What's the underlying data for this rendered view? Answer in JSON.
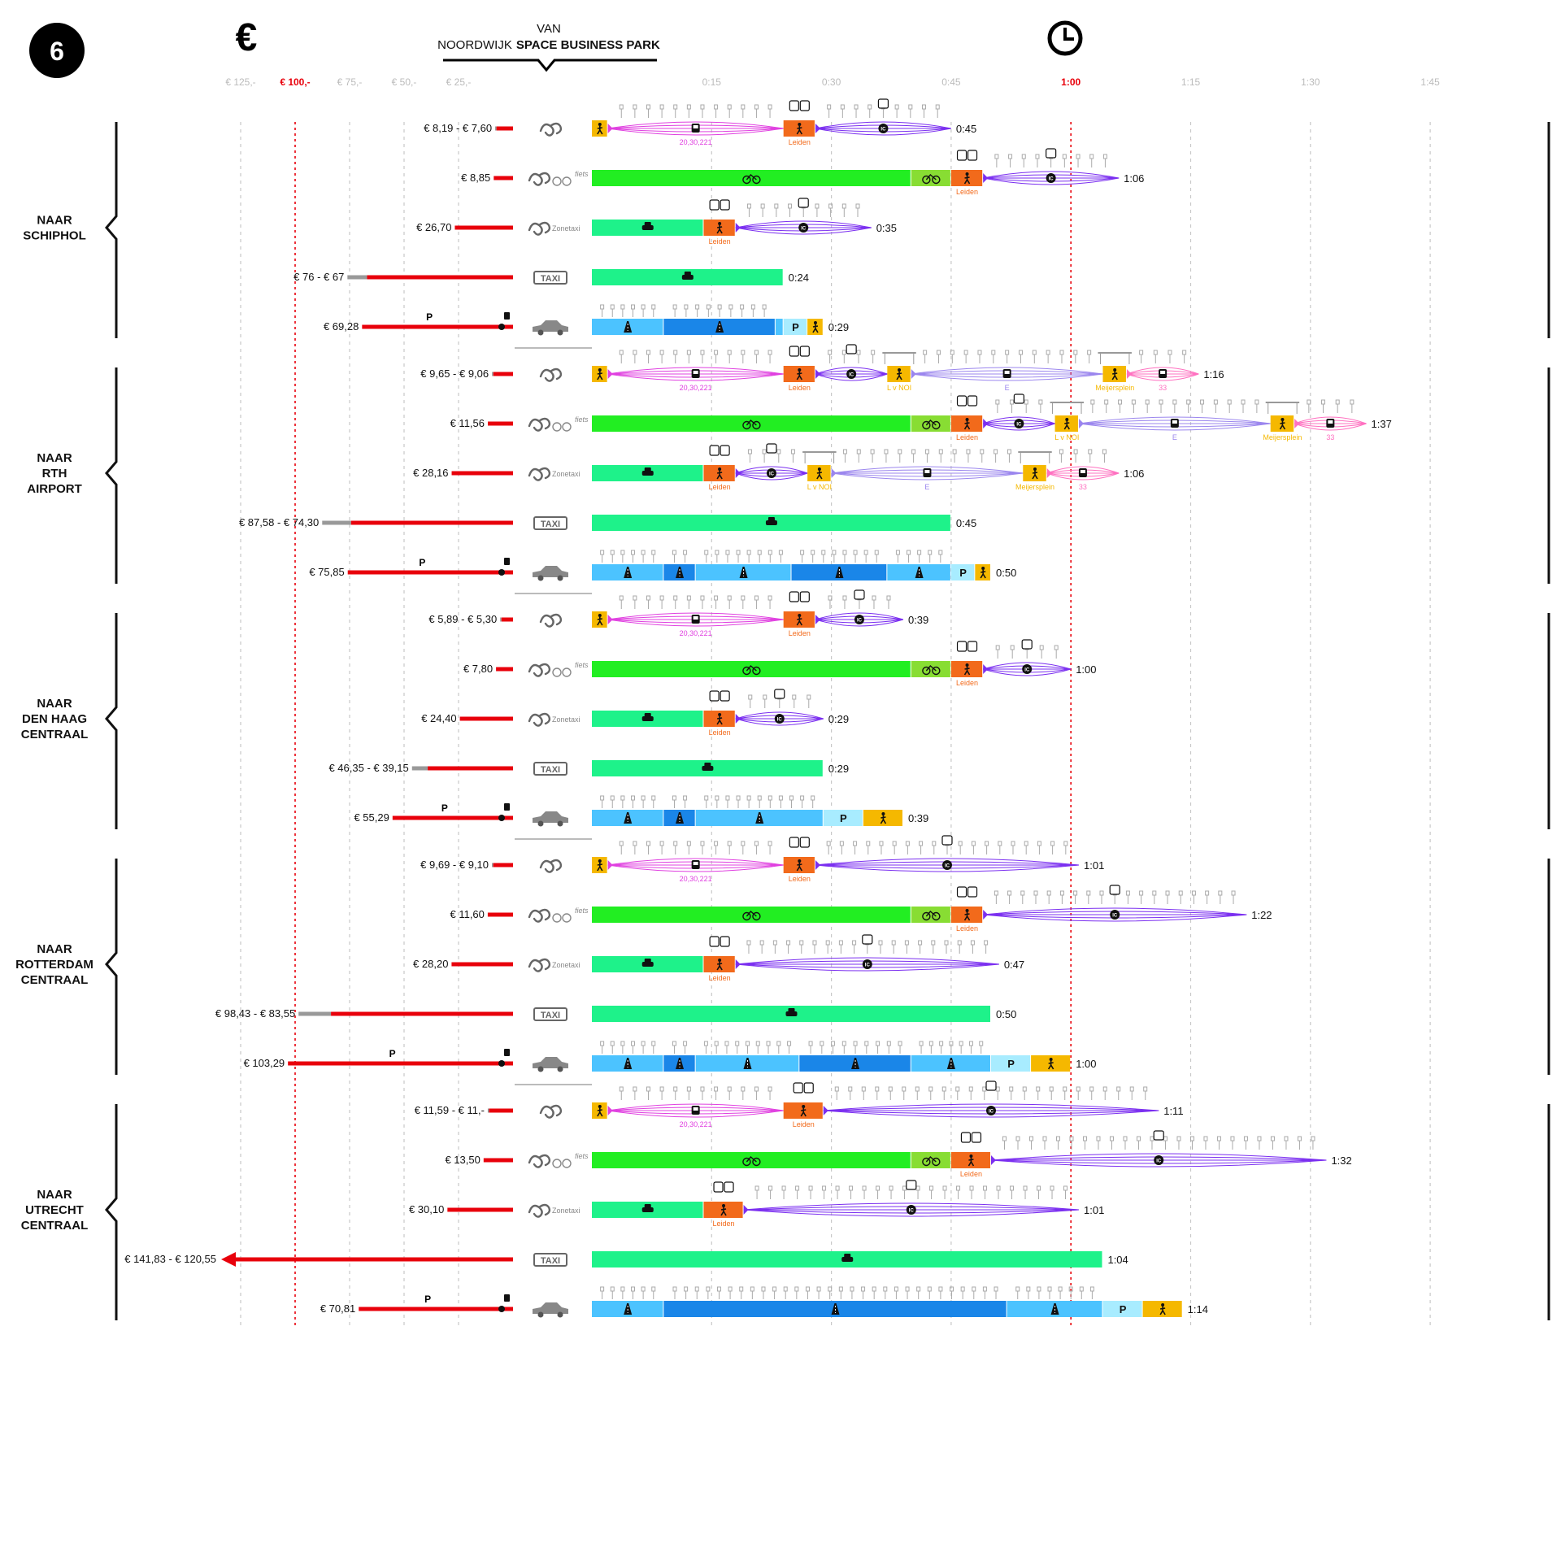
{
  "figure_number": "6",
  "header": {
    "van": "VAN",
    "origin_prefix": "NOORDWIJK",
    "origin_bold": "SPACE BUSINESS PARK",
    "euro_symbol": "€"
  },
  "price_ticks": [
    "€ 125,-",
    "€ 100,-",
    "€ 75,-",
    "€ 50,-",
    "€ 25,-"
  ],
  "time_ticks": [
    "0:15",
    "0:30",
    "0:45",
    "1:00",
    "1:15",
    "1:30",
    "1:45"
  ],
  "colors": {
    "walk": "#f5b800",
    "bike": "#22ee22",
    "bike_park": "#88dd33",
    "transfer": "#f26a1b",
    "bus": "#e040e0",
    "train": "#7b2ff0",
    "tram": "#9b86ee",
    "bus33": "#ff70c0",
    "taxi": "#1ef28a",
    "road_light": "#4cc3ff",
    "road_dark": "#1a86e8",
    "parking": "#a8ecff",
    "price_red": "#e8000b",
    "price_gray": "#999999",
    "stop": "#aaaaaa"
  },
  "groups": [
    {
      "title": [
        "NAAR",
        "SCHIPHOL"
      ],
      "rows": [
        {
          "mode": "ov",
          "price": "€ 8,19 - € 7,60",
          "min": 7.6,
          "max": 8.19,
          "total": "0:45",
          "segments": [
            {
              "type": "walk",
              "from": 0,
              "to": 2
            },
            {
              "type": "bus",
              "from": 2,
              "to": 24,
              "line": "20,30,221"
            },
            {
              "type": "transfer",
              "from": 24,
              "to": 28,
              "station": "Leiden"
            },
            {
              "type": "train",
              "from": 28,
              "to": 45
            }
          ]
        },
        {
          "mode": "fiets",
          "price": "€ 8,85",
          "min": 8.85,
          "max": 8.85,
          "total": "1:06",
          "segments": [
            {
              "type": "bike",
              "from": 0,
              "to": 40
            },
            {
              "type": "bike_park",
              "from": 40,
              "to": 45
            },
            {
              "type": "transfer",
              "from": 45,
              "to": 49,
              "station": "Leiden"
            },
            {
              "type": "train",
              "from": 49,
              "to": 66
            }
          ]
        },
        {
          "mode": "zonetaxi",
          "price": "€ 26,70",
          "min": 26.7,
          "max": 26.7,
          "total": "0:35",
          "segments": [
            {
              "type": "taxi",
              "from": 0,
              "to": 14
            },
            {
              "type": "transfer",
              "from": 14,
              "to": 18,
              "station": "Leiden"
            },
            {
              "type": "train",
              "from": 18,
              "to": 35
            }
          ]
        },
        {
          "mode": "taxi",
          "price": "€ 76 - € 67",
          "min": 67,
          "max": 76,
          "total": "0:24",
          "segments": [
            {
              "type": "taxi",
              "from": 0,
              "to": 24
            }
          ]
        },
        {
          "mode": "auto",
          "price": "€ 69,28",
          "min": 69.28,
          "max": 69.28,
          "total": "0:29",
          "segments": [
            {
              "type": "road_light",
              "from": 0,
              "to": 9
            },
            {
              "type": "road_dark",
              "from": 9,
              "to": 23
            },
            {
              "type": "road_light",
              "from": 23,
              "to": 24
            },
            {
              "type": "parking",
              "from": 24,
              "to": 27
            },
            {
              "type": "walk",
              "from": 27,
              "to": 29
            }
          ]
        }
      ]
    },
    {
      "title": [
        "NAAR",
        "RTH",
        "AIRPORT"
      ],
      "rows": [
        {
          "mode": "ov",
          "price": "€ 9,65 - € 9,06",
          "min": 9.06,
          "max": 9.65,
          "total": "1:16",
          "segments": [
            {
              "type": "walk",
              "from": 0,
              "to": 2
            },
            {
              "type": "bus",
              "from": 2,
              "to": 24,
              "line": "20,30,221"
            },
            {
              "type": "transfer",
              "from": 24,
              "to": 28,
              "station": "Leiden"
            },
            {
              "type": "train",
              "from": 28,
              "to": 37
            },
            {
              "type": "walk",
              "from": 37,
              "to": 40,
              "station": "L v NOI"
            },
            {
              "type": "tram",
              "from": 40,
              "to": 64,
              "line": "E"
            },
            {
              "type": "walk",
              "from": 64,
              "to": 67,
              "station": "Meijersplein"
            },
            {
              "type": "bus33",
              "from": 67,
              "to": 76,
              "line": "33"
            }
          ]
        },
        {
          "mode": "fiets",
          "price": "€ 11,56",
          "min": 11.56,
          "max": 11.56,
          "total": "1:37",
          "segments": [
            {
              "type": "bike",
              "from": 0,
              "to": 40
            },
            {
              "type": "bike_park",
              "from": 40,
              "to": 45
            },
            {
              "type": "transfer",
              "from": 45,
              "to": 49,
              "station": "Leiden"
            },
            {
              "type": "train",
              "from": 49,
              "to": 58
            },
            {
              "type": "walk",
              "from": 58,
              "to": 61,
              "station": "L v NOI"
            },
            {
              "type": "tram",
              "from": 61,
              "to": 85,
              "line": "E"
            },
            {
              "type": "walk",
              "from": 85,
              "to": 88,
              "station": "Meijersplein"
            },
            {
              "type": "bus33",
              "from": 88,
              "to": 97,
              "line": "33"
            }
          ]
        },
        {
          "mode": "zonetaxi",
          "price": "€ 28,16",
          "min": 28.16,
          "max": 28.16,
          "total": "1:06",
          "segments": [
            {
              "type": "taxi",
              "from": 0,
              "to": 14
            },
            {
              "type": "transfer",
              "from": 14,
              "to": 18,
              "station": "Leiden"
            },
            {
              "type": "train",
              "from": 18,
              "to": 27
            },
            {
              "type": "walk",
              "from": 27,
              "to": 30,
              "station": "L v NOI"
            },
            {
              "type": "tram",
              "from": 30,
              "to": 54,
              "line": "E"
            },
            {
              "type": "walk",
              "from": 54,
              "to": 57,
              "station": "Meijersplein"
            },
            {
              "type": "bus33",
              "from": 57,
              "to": 66,
              "line": "33"
            }
          ]
        },
        {
          "mode": "taxi",
          "price": "€ 87,58 - € 74,30",
          "min": 74.3,
          "max": 87.58,
          "total": "0:45",
          "segments": [
            {
              "type": "taxi",
              "from": 0,
              "to": 45
            }
          ]
        },
        {
          "mode": "auto",
          "price": "€ 75,85",
          "min": 75.85,
          "max": 75.85,
          "total": "0:50",
          "segments": [
            {
              "type": "road_light",
              "from": 0,
              "to": 9
            },
            {
              "type": "road_dark",
              "from": 9,
              "to": 13
            },
            {
              "type": "road_light",
              "from": 13,
              "to": 25
            },
            {
              "type": "road_dark",
              "from": 25,
              "to": 37
            },
            {
              "type": "road_light",
              "from": 37,
              "to": 45
            },
            {
              "type": "parking",
              "from": 45,
              "to": 48
            },
            {
              "type": "walk",
              "from": 48,
              "to": 50
            }
          ]
        }
      ]
    },
    {
      "title": [
        "NAAR",
        "DEN HAAG",
        "CENTRAAL"
      ],
      "rows": [
        {
          "mode": "ov",
          "price": "€ 5,89 - € 5,30",
          "min": 5.3,
          "max": 5.89,
          "total": "0:39",
          "segments": [
            {
              "type": "walk",
              "from": 0,
              "to": 2
            },
            {
              "type": "bus",
              "from": 2,
              "to": 24,
              "line": "20,30,221"
            },
            {
              "type": "transfer",
              "from": 24,
              "to": 28,
              "station": "Leiden"
            },
            {
              "type": "train",
              "from": 28,
              "to": 39
            }
          ]
        },
        {
          "mode": "fiets",
          "price": "€ 7,80",
          "min": 7.8,
          "max": 7.8,
          "total": "1:00",
          "segments": [
            {
              "type": "bike",
              "from": 0,
              "to": 40
            },
            {
              "type": "bike_park",
              "from": 40,
              "to": 45
            },
            {
              "type": "transfer",
              "from": 45,
              "to": 49,
              "station": "Leiden"
            },
            {
              "type": "train",
              "from": 49,
              "to": 60
            }
          ]
        },
        {
          "mode": "zonetaxi",
          "price": "€ 24,40",
          "min": 24.4,
          "max": 24.4,
          "total": "0:29",
          "segments": [
            {
              "type": "taxi",
              "from": 0,
              "to": 14
            },
            {
              "type": "transfer",
              "from": 14,
              "to": 18,
              "station": "Leiden"
            },
            {
              "type": "train",
              "from": 18,
              "to": 29
            }
          ]
        },
        {
          "mode": "taxi",
          "price": "€ 46,35 - € 39,15",
          "min": 39.15,
          "max": 46.35,
          "total": "0:29",
          "segments": [
            {
              "type": "taxi",
              "from": 0,
              "to": 29
            }
          ]
        },
        {
          "mode": "auto",
          "price": "€ 55,29",
          "min": 55.29,
          "max": 55.29,
          "total": "0:39",
          "segments": [
            {
              "type": "road_light",
              "from": 0,
              "to": 9
            },
            {
              "type": "road_dark",
              "from": 9,
              "to": 13
            },
            {
              "type": "road_light",
              "from": 13,
              "to": 29
            },
            {
              "type": "parking",
              "from": 29,
              "to": 34
            },
            {
              "type": "walk",
              "from": 34,
              "to": 39
            }
          ]
        }
      ]
    },
    {
      "title": [
        "NAAR",
        "ROTTERDAM",
        "CENTRAAL"
      ],
      "rows": [
        {
          "mode": "ov",
          "price": "€ 9,69 - € 9,10",
          "min": 9.1,
          "max": 9.69,
          "total": "1:01",
          "segments": [
            {
              "type": "walk",
              "from": 0,
              "to": 2
            },
            {
              "type": "bus",
              "from": 2,
              "to": 24,
              "line": "20,30,221"
            },
            {
              "type": "transfer",
              "from": 24,
              "to": 28,
              "station": "Leiden"
            },
            {
              "type": "train",
              "from": 28,
              "to": 61
            }
          ]
        },
        {
          "mode": "fiets",
          "price": "€ 11,60",
          "min": 11.6,
          "max": 11.6,
          "total": "1:22",
          "segments": [
            {
              "type": "bike",
              "from": 0,
              "to": 40
            },
            {
              "type": "bike_park",
              "from": 40,
              "to": 45
            },
            {
              "type": "transfer",
              "from": 45,
              "to": 49,
              "station": "Leiden"
            },
            {
              "type": "train",
              "from": 49,
              "to": 82
            }
          ]
        },
        {
          "mode": "zonetaxi",
          "price": "€ 28,20",
          "min": 28.2,
          "max": 28.2,
          "total": "0:47",
          "segments": [
            {
              "type": "taxi",
              "from": 0,
              "to": 14
            },
            {
              "type": "transfer",
              "from": 14,
              "to": 18,
              "station": "Leiden"
            },
            {
              "type": "train",
              "from": 18,
              "to": 51
            }
          ]
        },
        {
          "mode": "taxi",
          "price": "€ 98,43 - € 83,55",
          "min": 83.55,
          "max": 98.43,
          "total": "0:50",
          "segments": [
            {
              "type": "taxi",
              "from": 0,
              "to": 50
            }
          ]
        },
        {
          "mode": "auto",
          "price": "€ 103,29",
          "min": 103.29,
          "max": 103.29,
          "total": "1:00",
          "segments": [
            {
              "type": "road_light",
              "from": 0,
              "to": 9
            },
            {
              "type": "road_dark",
              "from": 9,
              "to": 13
            },
            {
              "type": "road_light",
              "from": 13,
              "to": 26
            },
            {
              "type": "road_dark",
              "from": 26,
              "to": 40
            },
            {
              "type": "road_light",
              "from": 40,
              "to": 50
            },
            {
              "type": "parking",
              "from": 50,
              "to": 55
            },
            {
              "type": "walk",
              "from": 55,
              "to": 60
            }
          ]
        }
      ]
    },
    {
      "title": [
        "NAAR",
        "UTRECHT",
        "CENTRAAL"
      ],
      "rows": [
        {
          "mode": "ov",
          "price": "€ 11,59 - € 11,-",
          "min": 11.0,
          "max": 11.59,
          "total": "1:11",
          "segments": [
            {
              "type": "walk",
              "from": 0,
              "to": 2
            },
            {
              "type": "bus",
              "from": 2,
              "to": 24,
              "line": "20,30,221"
            },
            {
              "type": "transfer",
              "from": 24,
              "to": 29,
              "station": "Leiden"
            },
            {
              "type": "train",
              "from": 29,
              "to": 71
            }
          ]
        },
        {
          "mode": "fiets",
          "price": "€ 13,50",
          "min": 13.5,
          "max": 13.5,
          "total": "1:32",
          "segments": [
            {
              "type": "bike",
              "from": 0,
              "to": 40
            },
            {
              "type": "bike_park",
              "from": 40,
              "to": 45
            },
            {
              "type": "transfer",
              "from": 45,
              "to": 50,
              "station": "Leiden"
            },
            {
              "type": "train",
              "from": 50,
              "to": 92
            }
          ]
        },
        {
          "mode": "zonetaxi",
          "price": "€ 30,10",
          "min": 30.1,
          "max": 30.1,
          "total": "1:01",
          "segments": [
            {
              "type": "taxi",
              "from": 0,
              "to": 14
            },
            {
              "type": "transfer",
              "from": 14,
              "to": 19,
              "station": "Leiden"
            },
            {
              "type": "train",
              "from": 19,
              "to": 61
            }
          ]
        },
        {
          "mode": "taxi",
          "price": "€ 141,83 - € 120,55",
          "min": 120.55,
          "max": 141.83,
          "total": "1:04",
          "overflow": true,
          "segments": [
            {
              "type": "taxi",
              "from": 0,
              "to": 64
            }
          ]
        },
        {
          "mode": "auto",
          "price": "€ 70,81",
          "min": 70.81,
          "max": 70.81,
          "total": "1:14",
          "segments": [
            {
              "type": "road_light",
              "from": 0,
              "to": 9
            },
            {
              "type": "road_dark",
              "from": 9,
              "to": 52
            },
            {
              "type": "road_light",
              "from": 52,
              "to": 64
            },
            {
              "type": "parking",
              "from": 64,
              "to": 69
            },
            {
              "type": "walk",
              "from": 69,
              "to": 74
            }
          ]
        }
      ]
    }
  ],
  "mode_labels": {
    "fiets": "fiets",
    "zonetaxi": "Zonetaxi",
    "taxi": "TAXI",
    "parking": "P"
  }
}
